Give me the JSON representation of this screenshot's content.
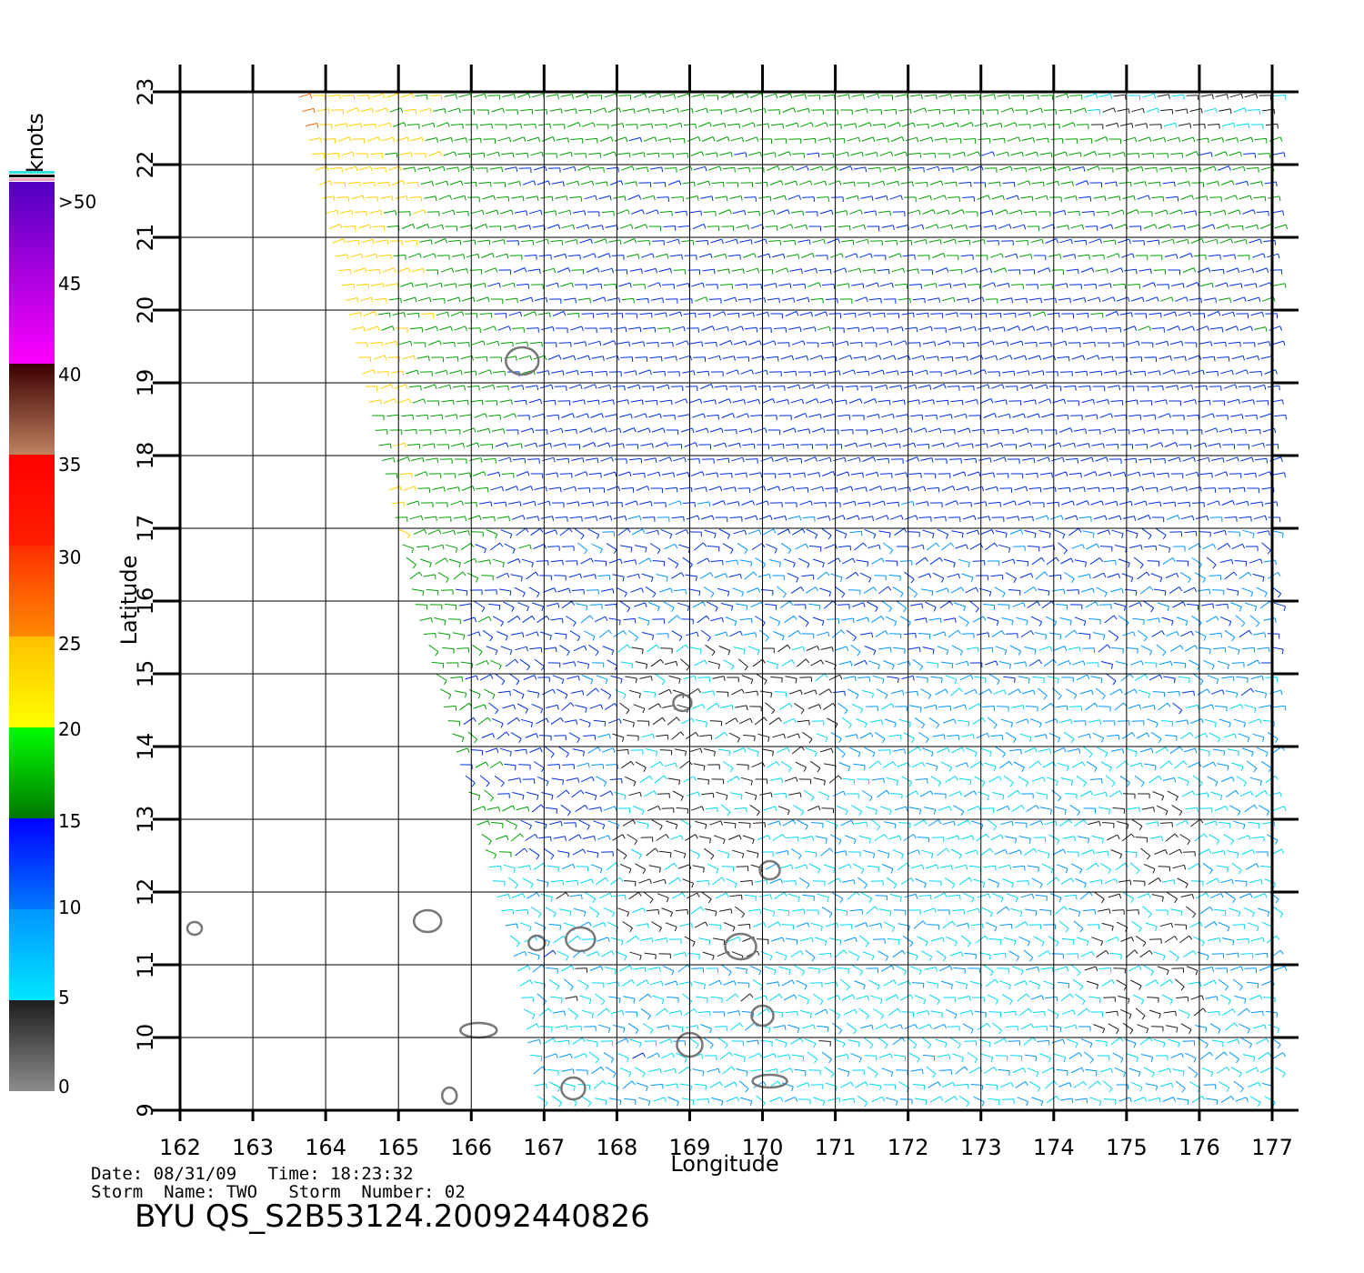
{
  "colorbar": {
    "units": "knots",
    "labels": [
      "0",
      "5",
      "10",
      "15",
      "20",
      "25",
      "30",
      "35",
      "40",
      "45",
      ">50"
    ],
    "segments": [
      {
        "from": 0,
        "to": 5,
        "colors": [
          "#8c8c8c",
          "#1e1e1e"
        ]
      },
      {
        "from": 5,
        "to": 10,
        "colors": [
          "#00e6ff",
          "#0096ff"
        ]
      },
      {
        "from": 10,
        "to": 15,
        "colors": [
          "#0078ff",
          "#0000ff"
        ]
      },
      {
        "from": 15,
        "to": 20,
        "colors": [
          "#007800",
          "#00ff00"
        ]
      },
      {
        "from": 20,
        "to": 25,
        "colors": [
          "#ffff00",
          "#ffc000"
        ]
      },
      {
        "from": 25,
        "to": 30,
        "colors": [
          "#ff8a00",
          "#ff3000"
        ]
      },
      {
        "from": 30,
        "to": 35,
        "colors": [
          "#ff1e00",
          "#ff0000"
        ]
      },
      {
        "from": 35,
        "to": 40,
        "colors": [
          "#c08060",
          "#3a0000"
        ]
      },
      {
        "from": 40,
        "to": 50,
        "colors": [
          "#ff00ff",
          "#5000c0"
        ]
      }
    ]
  },
  "map": {
    "xlabel": "Longitude",
    "ylabel": "Latitude",
    "lon_range": [
      162,
      177.3
    ],
    "lat_range": [
      9,
      23
    ],
    "lon_ticks": [
      162,
      163,
      164,
      165,
      166,
      167,
      168,
      169,
      170,
      171,
      172,
      173,
      174,
      175,
      176,
      177
    ],
    "lat_ticks": [
      9,
      10,
      11,
      12,
      13,
      14,
      15,
      16,
      17,
      18,
      19,
      20,
      21,
      22,
      23
    ],
    "swath_west_edge": [
      [
        163.7,
        23
      ],
      [
        165.3,
        16
      ],
      [
        166.7,
        11
      ],
      [
        167.0,
        9
      ]
    ],
    "islands": [
      {
        "lon": 162.2,
        "lat": 11.5
      },
      {
        "lon": 165.4,
        "lat": 11.6
      },
      {
        "lon": 166.9,
        "lat": 11.3
      },
      {
        "lon": 167.5,
        "lat": 11.35
      },
      {
        "lon": 168.9,
        "lat": 14.6
      },
      {
        "lon": 169.7,
        "lat": 11.25
      },
      {
        "lon": 170.1,
        "lat": 12.3
      },
      {
        "lon": 166.7,
        "lat": 19.3
      },
      {
        "lon": 170.0,
        "lat": 10.3
      },
      {
        "lon": 170.1,
        "lat": 9.4
      },
      {
        "lon": 167.4,
        "lat": 9.3
      },
      {
        "lon": 166.1,
        "lat": 10.1
      },
      {
        "lon": 169.0,
        "lat": 9.9
      },
      {
        "lon": 165.7,
        "lat": 9.2
      }
    ]
  },
  "meta": {
    "line1": "Date: 08/31/09   Time: 18:23:32",
    "line2": "Storm  Name: TWO   Storm  Number: 02",
    "product": "BYU  QS_S2B53124.20092440826"
  }
}
